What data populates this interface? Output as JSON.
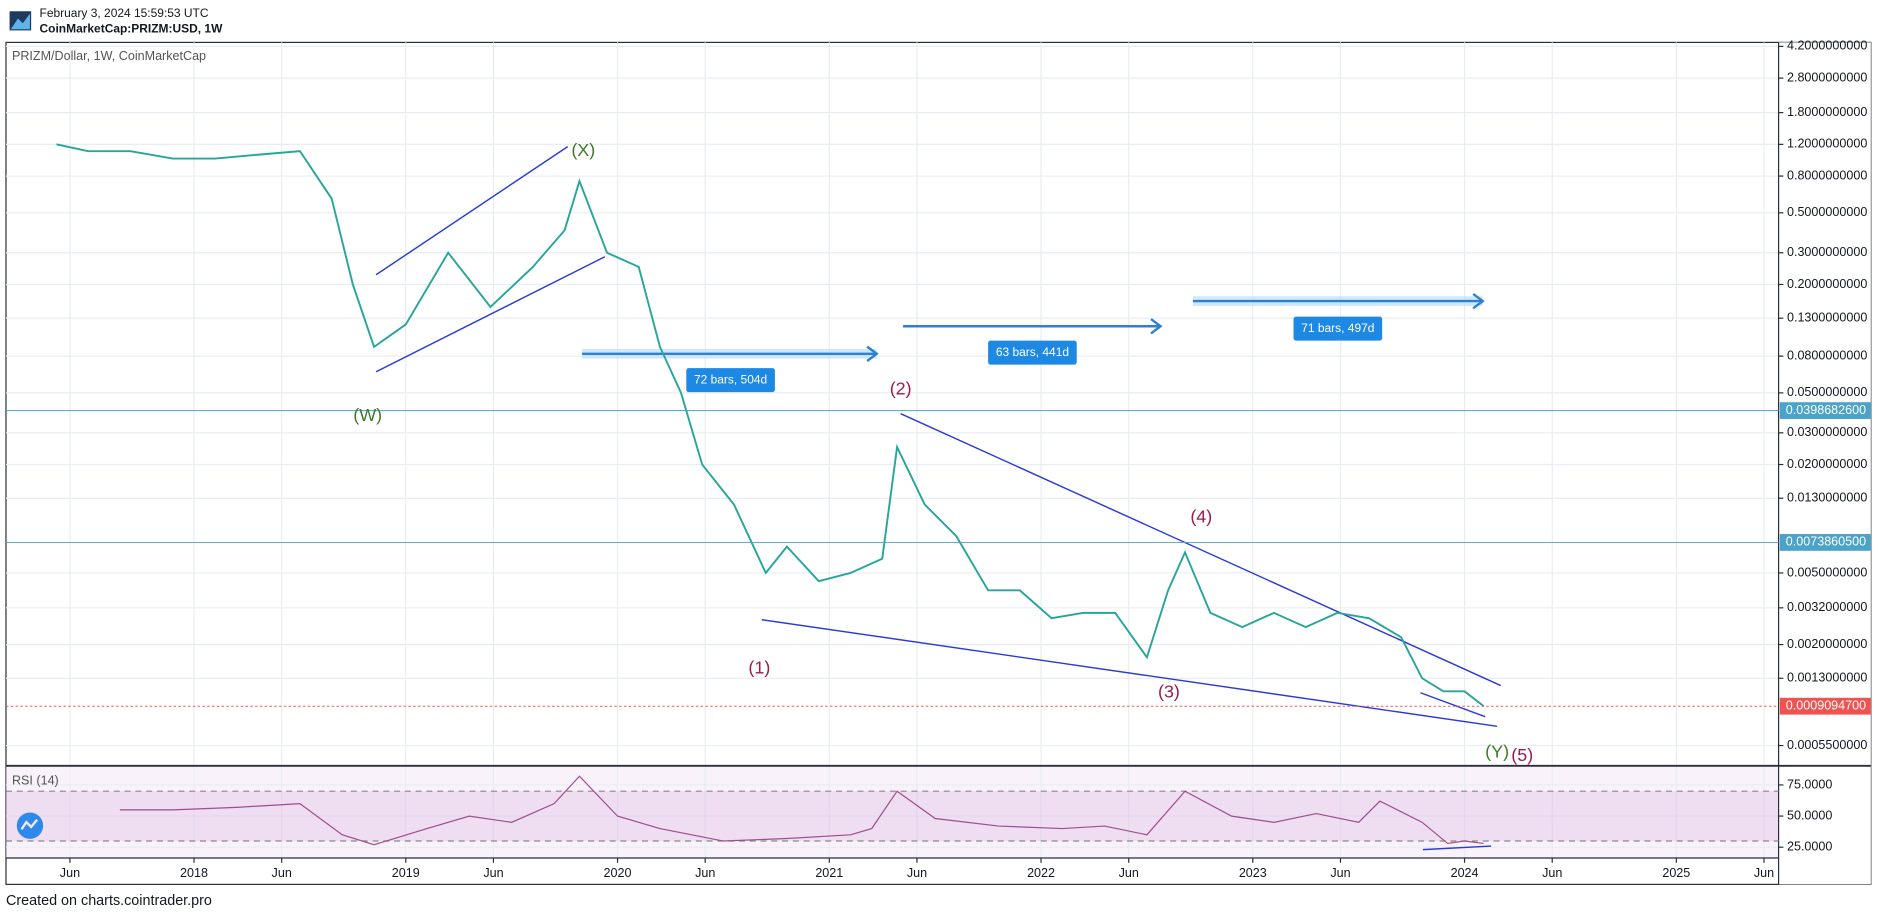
{
  "header": {
    "timestamp": "February 3, 2024 15:59:53 UTC",
    "symbol": "CoinMarketCap:PRIZM:USD, 1W"
  },
  "footer": "Created on charts.cointrader.pro",
  "chart_data": [
    {
      "type": "line",
      "title": "PRIZM/Dollar, 1W, CoinMarketCap",
      "log_scale": true,
      "grid": true,
      "x": [
        2017.35,
        2017.5,
        2017.7,
        2017.9,
        2018.1,
        2018.3,
        2018.5,
        2018.65,
        2018.75,
        2018.85,
        2019.0,
        2019.2,
        2019.4,
        2019.6,
        2019.75,
        2019.82,
        2019.95,
        2020.1,
        2020.2,
        2020.3,
        2020.4,
        2020.55,
        2020.7,
        2020.8,
        2020.95,
        2021.1,
        2021.25,
        2021.32,
        2021.45,
        2021.6,
        2021.75,
        2021.9,
        2022.05,
        2022.2,
        2022.35,
        2022.5,
        2022.6,
        2022.68,
        2022.8,
        2022.95,
        2023.1,
        2023.25,
        2023.4,
        2023.55,
        2023.7,
        2023.8,
        2023.9,
        2024.0,
        2024.09
      ],
      "series": [
        {
          "name": "PRIZM/Dollar",
          "color": "#26a69a",
          "values": [
            1.2,
            1.1,
            1.1,
            1.0,
            1.0,
            1.05,
            1.1,
            0.6,
            0.2,
            0.09,
            0.12,
            0.3,
            0.15,
            0.25,
            0.4,
            0.75,
            0.3,
            0.25,
            0.09,
            0.05,
            0.02,
            0.012,
            0.005,
            0.007,
            0.0045,
            0.005,
            0.006,
            0.025,
            0.012,
            0.008,
            0.004,
            0.004,
            0.0028,
            0.003,
            0.003,
            0.0017,
            0.004,
            0.0065,
            0.003,
            0.0025,
            0.003,
            0.0025,
            0.003,
            0.0028,
            0.0022,
            0.0013,
            0.0011,
            0.0011,
            0.00091
          ]
        }
      ],
      "xlim": [
        2017.112,
        2025.483
      ],
      "xticks": [
        {
          "value": 2017.414,
          "label": "Jun"
        },
        2018,
        {
          "value": 2018.414,
          "label": "Jun"
        },
        2019,
        {
          "value": 2019.414,
          "label": "Jun"
        },
        2020,
        {
          "value": 2020.414,
          "label": "Jun"
        },
        2021,
        {
          "value": 2021.414,
          "label": "Jun"
        },
        2022,
        {
          "value": 2022.414,
          "label": "Jun"
        },
        2023,
        {
          "value": 2023.414,
          "label": "Jun"
        },
        2024,
        {
          "value": 2024.414,
          "label": "Jun"
        },
        2025,
        {
          "value": 2025.414,
          "label": "Jun"
        }
      ],
      "ylim": [
        0.000431,
        4.42
      ],
      "yticks": [
        {
          "value": 4.2,
          "label": "4.2000000000"
        },
        {
          "value": 2.8,
          "label": "2.8000000000"
        },
        {
          "value": 1.8,
          "label": "1.8000000000"
        },
        {
          "value": 1.2,
          "label": "1.2000000000"
        },
        {
          "value": 0.8,
          "label": "0.8000000000"
        },
        {
          "value": 0.5,
          "label": "0.5000000000"
        },
        {
          "value": 0.3,
          "label": "0.3000000000"
        },
        {
          "value": 0.2,
          "label": "0.2000000000"
        },
        {
          "value": 0.13,
          "label": "0.1300000000"
        },
        {
          "value": 0.08,
          "label": "0.0800000000"
        },
        {
          "value": 0.05,
          "label": "0.0500000000"
        },
        {
          "value": 0.03,
          "label": "0.0300000000"
        },
        {
          "value": 0.02,
          "label": "0.0200000000"
        },
        {
          "value": 0.013,
          "label": "0.0130000000"
        },
        {
          "value": 0.005,
          "label": "0.0050000000"
        },
        {
          "value": 0.0032,
          "label": "0.0032000000"
        },
        {
          "value": 0.002,
          "label": "0.0020000000"
        },
        {
          "value": 0.0013,
          "label": "0.0013000000"
        },
        {
          "value": 0.00055,
          "label": "0.0005500000"
        }
      ],
      "price_lines": [
        {
          "value": 0.03986826,
          "label": "0.0398682600",
          "color": "#4aa3c8"
        },
        {
          "value": 0.00738605,
          "label": "0.0073860500",
          "color": "#4aa3c8"
        },
        {
          "value": 0.00090947,
          "label": "0.0009094700",
          "color": "#ef5350"
        }
      ],
      "annotations": [
        {
          "text": "(W)",
          "color": "#3d7a2a"
        },
        {
          "text": "(X)",
          "color": "#3d7a2a"
        },
        {
          "text": "(1)",
          "color": "#9c1c4c"
        },
        {
          "text": "(2)",
          "color": "#9c1c4c"
        },
        {
          "text": "(3)",
          "color": "#9c1c4c"
        },
        {
          "text": "(4)",
          "color": "#9c1c4c"
        },
        {
          "text": "(Y)",
          "color": "#3d7a2a"
        },
        {
          "text": "(5)",
          "color": "#9c1c4c"
        }
      ],
      "measures": [
        "72 bars, 504d",
        "63 bars, 441d",
        "71 bars, 497d"
      ]
    },
    {
      "type": "line",
      "title": "RSI (14)",
      "grid": true,
      "x": [
        2017.65,
        2017.9,
        2018.2,
        2018.5,
        2018.7,
        2018.85,
        2019.1,
        2019.3,
        2019.5,
        2019.7,
        2019.82,
        2020.0,
        2020.2,
        2020.5,
        2020.8,
        2021.1,
        2021.2,
        2021.32,
        2021.5,
        2021.8,
        2022.1,
        2022.3,
        2022.5,
        2022.68,
        2022.9,
        2023.1,
        2023.3,
        2023.5,
        2023.6,
        2023.8,
        2023.92,
        2024.0,
        2024.09
      ],
      "series": [
        {
          "name": "RSI",
          "color": "#9c4f8c",
          "values": [
            55,
            55,
            57,
            60,
            35,
            27,
            40,
            50,
            45,
            60,
            82,
            50,
            40,
            30,
            32,
            35,
            40,
            70,
            48,
            42,
            40,
            42,
            35,
            70,
            50,
            45,
            52,
            45,
            62,
            45,
            28,
            30,
            28
          ]
        }
      ],
      "band": [
        30,
        70
      ],
      "ylim": [
        16.3,
        89.4
      ],
      "yticks": [
        {
          "value": 75,
          "label": "75.0000"
        },
        {
          "value": 50,
          "label": "50.0000"
        },
        {
          "value": 25,
          "label": "25.0000"
        }
      ]
    }
  ]
}
